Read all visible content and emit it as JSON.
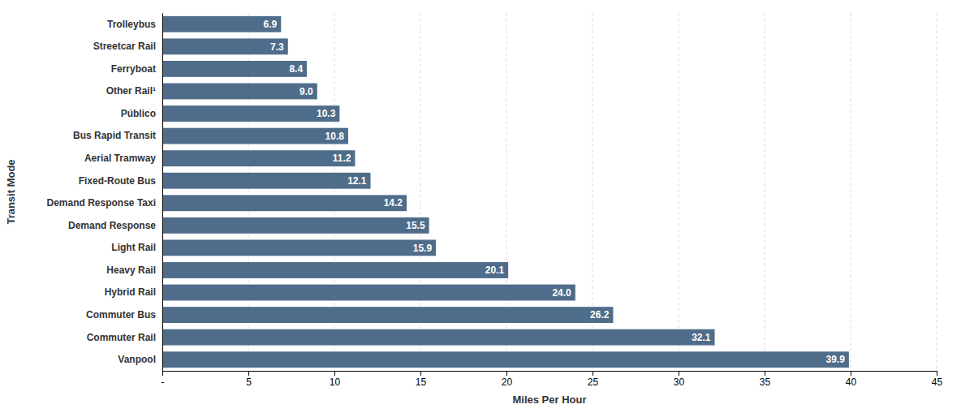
{
  "chart_data": {
    "type": "bar",
    "orientation": "horizontal",
    "categories": [
      "Trolleybus",
      "Streetcar Rail",
      "Ferryboat",
      "Other Rail¹",
      "Público",
      "Bus Rapid Transit",
      "Aerial Tramway",
      "Fixed-Route Bus",
      "Demand Response Taxi",
      "Demand Response",
      "Light Rail",
      "Heavy Rail",
      "Hybrid Rail",
      "Commuter Bus",
      "Commuter Rail",
      "Vanpool"
    ],
    "values": [
      6.9,
      7.3,
      8.4,
      9.0,
      10.3,
      10.8,
      11.2,
      12.1,
      14.2,
      15.5,
      15.9,
      20.1,
      24.0,
      26.2,
      32.1,
      39.9
    ],
    "value_labels": [
      "6.9",
      "7.3",
      "8.4",
      "9.0",
      "10.3",
      "10.8",
      "11.2",
      "12.1",
      "14.2",
      "15.5",
      "15.9",
      "20.1",
      "24.0",
      "26.2",
      "32.1",
      "39.9"
    ],
    "data_labels": true,
    "color": "#4f6d8a",
    "xlabel": "Miles Per Hour",
    "ylabel": "Transit Mode",
    "xlim": [
      0,
      45
    ],
    "xticks": [
      {
        "value": 0,
        "label": "-"
      },
      5,
      10,
      15,
      20,
      25,
      30,
      35,
      40,
      45
    ],
    "grid": true
  }
}
